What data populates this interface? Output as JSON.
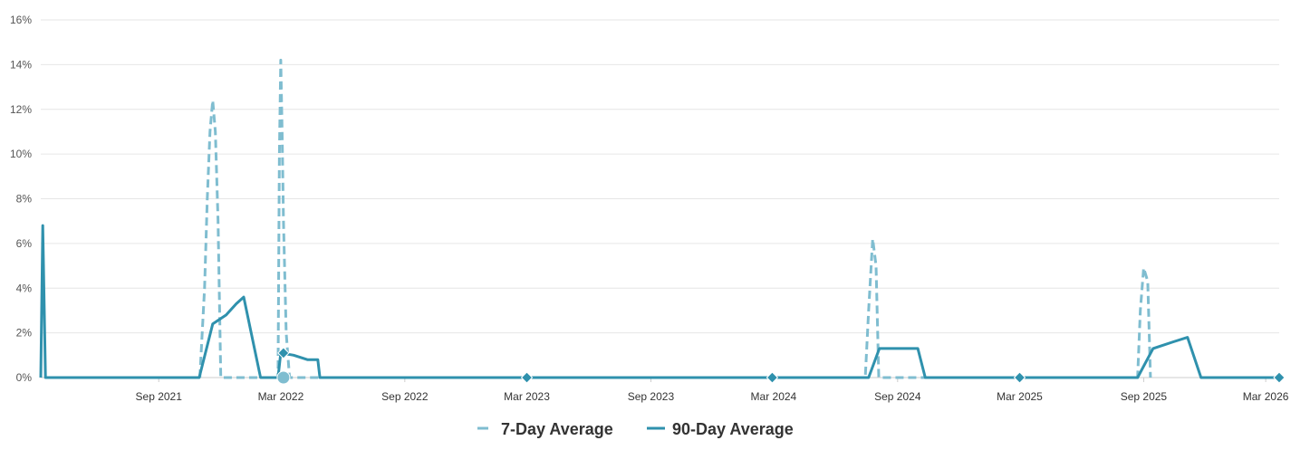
{
  "chart_data": {
    "type": "line",
    "y_ticks": [
      "0%",
      "2%",
      "4%",
      "6%",
      "8%",
      "10%",
      "12%",
      "14%",
      "16%"
    ],
    "ylim": [
      0,
      16
    ],
    "x_ticks": [
      {
        "date": "2021-09-01",
        "label": "Sep 2021"
      },
      {
        "date": "2022-03-01",
        "label": "Mar 2022"
      },
      {
        "date": "2022-09-01",
        "label": "Sep 2022"
      },
      {
        "date": "2023-03-01",
        "label": "Mar 2023"
      },
      {
        "date": "2023-09-01",
        "label": "Sep 2023"
      },
      {
        "date": "2024-03-01",
        "label": "Mar 2024"
      },
      {
        "date": "2024-09-01",
        "label": "Sep 2024"
      },
      {
        "date": "2025-03-01",
        "label": "Mar 2025"
      },
      {
        "date": "2025-09-01",
        "label": "Sep 2025"
      },
      {
        "date": "2026-03-01",
        "label": "Mar 2026"
      }
    ],
    "xlim": [
      "2021-03-10",
      "2026-03-21"
    ],
    "grid": true,
    "legend_position": "bottom",
    "series": [
      {
        "name": "7-Day Average",
        "color": "#7fbdd0",
        "dash": true,
        "points": [
          [
            "2021-11-01",
            0
          ],
          [
            "2021-11-08",
            4
          ],
          [
            "2021-11-12",
            8
          ],
          [
            "2021-11-16",
            11
          ],
          [
            "2021-11-20",
            12.4
          ],
          [
            "2021-11-24",
            11
          ],
          [
            "2021-11-28",
            7
          ],
          [
            "2021-12-02",
            0
          ],
          [
            "2022-02-25",
            0
          ],
          [
            "2022-02-27",
            10
          ],
          [
            "2022-03-01",
            14.2
          ],
          [
            "2022-03-03",
            11
          ],
          [
            "2022-03-05",
            7
          ],
          [
            "2022-03-09",
            2
          ],
          [
            "2022-03-14",
            0
          ],
          [
            "2024-07-15",
            0
          ],
          [
            "2024-07-20",
            3
          ],
          [
            "2024-07-26",
            6.2
          ],
          [
            "2024-07-31",
            5
          ],
          [
            "2024-08-04",
            0
          ],
          [
            "2025-08-23",
            0
          ],
          [
            "2025-08-27",
            3
          ],
          [
            "2025-09-01",
            4.9
          ],
          [
            "2025-09-07",
            4.3
          ],
          [
            "2025-09-11",
            0
          ]
        ]
      },
      {
        "name": "90-Day Average",
        "color": "#2f91ad",
        "dash": false,
        "points": [
          [
            "2021-03-10",
            0
          ],
          [
            "2021-03-13",
            6.8
          ],
          [
            "2021-03-17",
            0
          ],
          [
            "2021-10-31",
            0
          ],
          [
            "2021-11-20",
            2.4
          ],
          [
            "2021-12-10",
            2.8
          ],
          [
            "2021-12-25",
            3.3
          ],
          [
            "2022-01-05",
            3.6
          ],
          [
            "2022-01-30",
            0
          ],
          [
            "2022-02-25",
            0
          ],
          [
            "2022-03-01",
            1.1
          ],
          [
            "2022-03-20",
            1.0
          ],
          [
            "2022-04-10",
            0.8
          ],
          [
            "2022-04-25",
            0.8
          ],
          [
            "2022-04-28",
            0
          ],
          [
            "2024-07-20",
            0
          ],
          [
            "2024-08-05",
            1.3
          ],
          [
            "2024-10-01",
            1.3
          ],
          [
            "2024-10-12",
            0
          ],
          [
            "2025-08-23",
            0
          ],
          [
            "2025-09-15",
            1.3
          ],
          [
            "2025-10-15",
            1.6
          ],
          [
            "2025-11-05",
            1.8
          ],
          [
            "2025-11-25",
            0
          ],
          [
            "2026-03-21",
            0
          ]
        ]
      }
    ],
    "markers": [
      {
        "date": "2022-03-05",
        "value": 0,
        "shape": "circle",
        "series": "7-Day Average"
      },
      {
        "date": "2022-03-05",
        "value": 1.1,
        "shape": "diamond",
        "series": "90-Day Average"
      },
      {
        "date": "2023-03-01",
        "value": 0,
        "shape": "diamond",
        "series": "90-Day Average"
      },
      {
        "date": "2024-02-28",
        "value": 0,
        "shape": "diamond",
        "series": "90-Day Average"
      },
      {
        "date": "2025-03-01",
        "value": 0,
        "shape": "diamond",
        "series": "90-Day Average"
      },
      {
        "date": "2026-03-21",
        "value": 0,
        "shape": "diamond",
        "series": "90-Day Average"
      }
    ]
  }
}
